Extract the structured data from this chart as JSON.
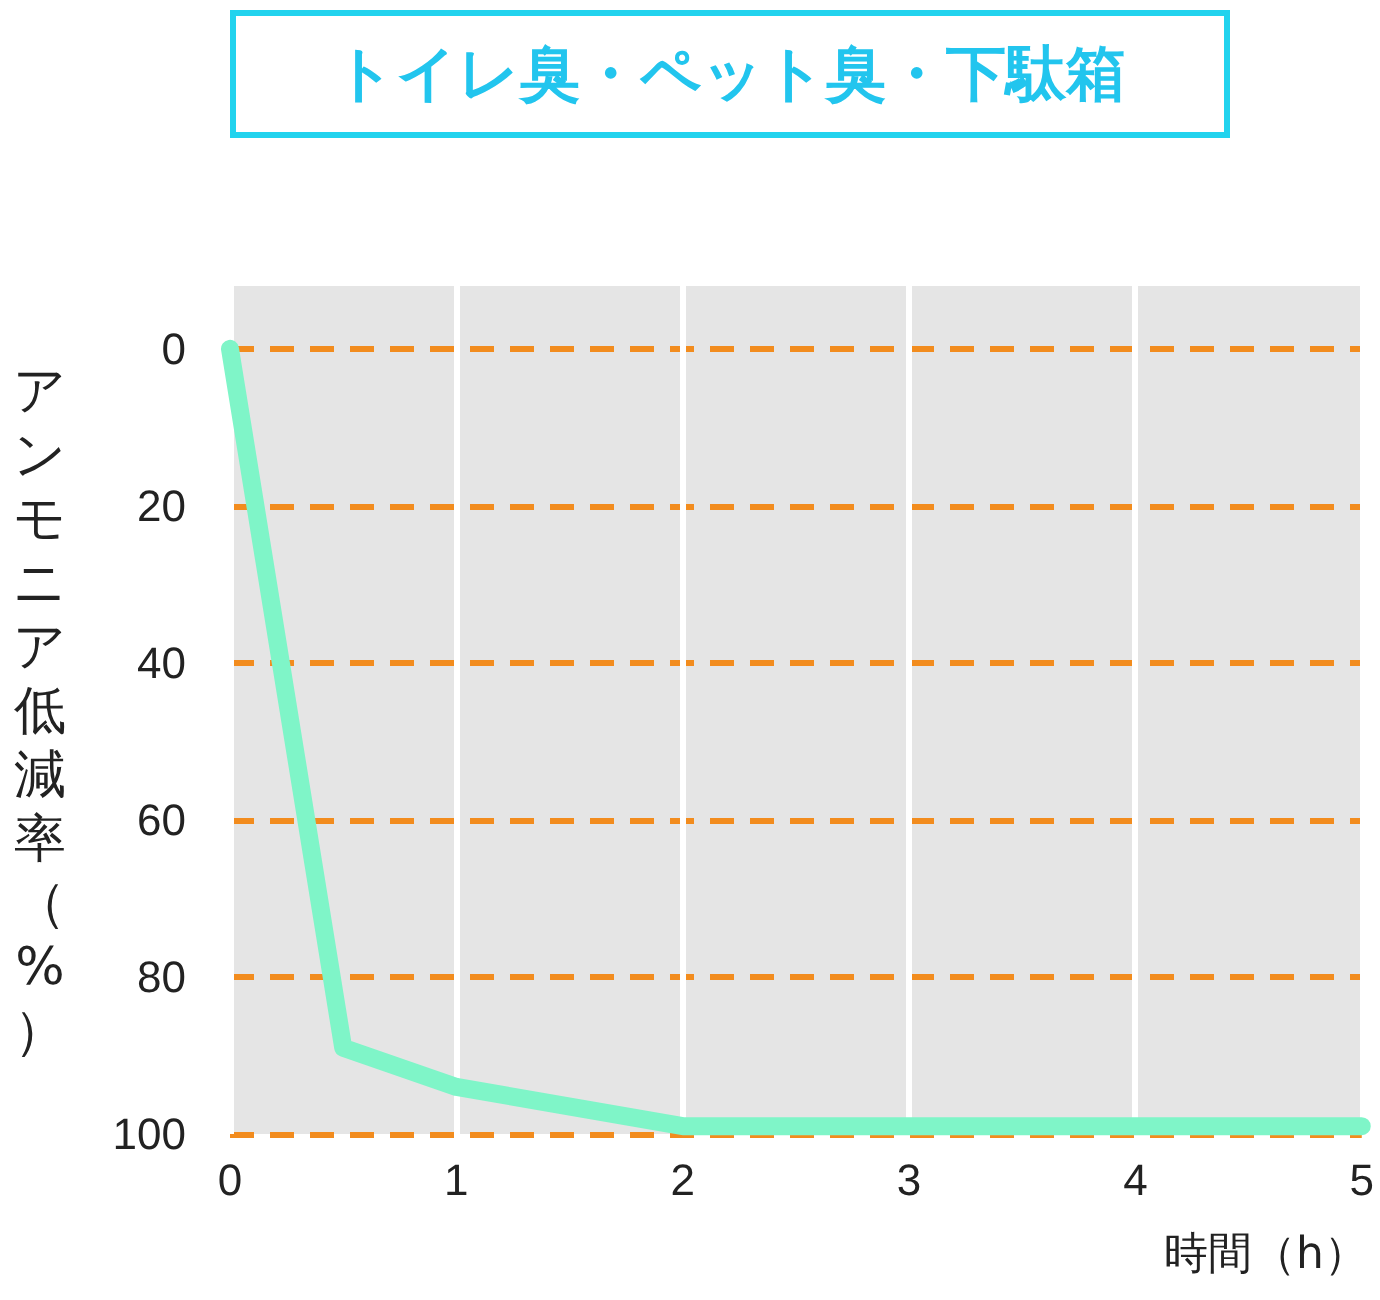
{
  "chart_data": {
    "type": "line",
    "title": "トイレ臭・ペット臭・下駄箱",
    "xlabel": "時間（h）",
    "ylabel": "アンモニア低減率（%）",
    "x": [
      0,
      0.5,
      1,
      2,
      3,
      4,
      5
    ],
    "series": [
      {
        "color": "#7ff5c8",
        "values": [
          0,
          89,
          94,
          99,
          99,
          99,
          99
        ]
      }
    ],
    "xlim": [
      0,
      5
    ],
    "xticks": [
      0,
      1,
      2,
      3,
      4,
      5
    ],
    "ylim": [
      100,
      -8
    ],
    "yticks": [
      0,
      20,
      40,
      60,
      80,
      100
    ],
    "grid": true,
    "line_style": "solid"
  }
}
